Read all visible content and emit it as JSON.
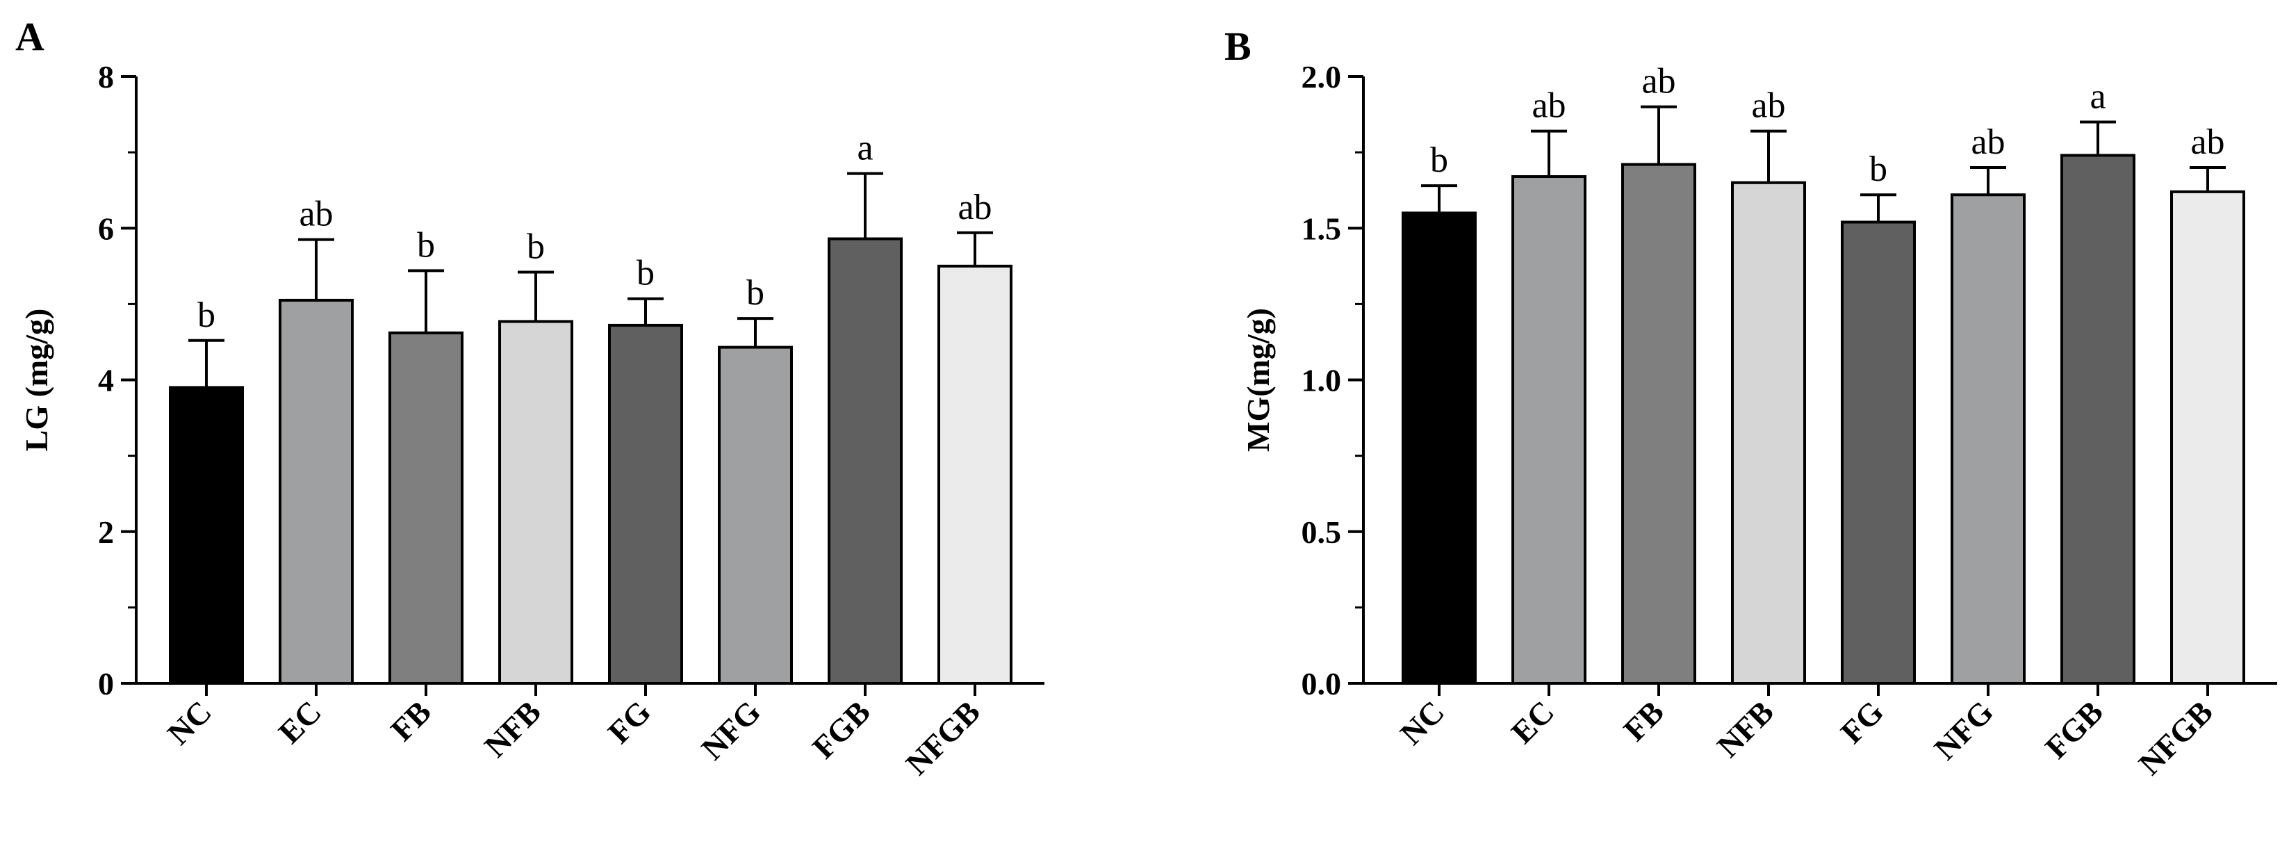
{
  "chart_data": [
    {
      "type": "bar",
      "panel_label": "A",
      "ylabel": "LG (mg/g)",
      "categories": [
        "NC",
        "EC",
        "FB",
        "NFB",
        "FG",
        "NFG",
        "FGB",
        "NFGB"
      ],
      "values": [
        3.9,
        5.05,
        4.62,
        4.77,
        4.72,
        4.43,
        5.86,
        5.5
      ],
      "errors": [
        0.62,
        0.8,
        0.82,
        0.65,
        0.35,
        0.38,
        0.86,
        0.44
      ],
      "significance": [
        "b",
        "ab",
        "b",
        "b",
        "b",
        "b",
        "a",
        "ab"
      ],
      "colors": [
        "#000000",
        "#9fa0a2",
        "#7f7f7f",
        "#d6d6d6",
        "#606060",
        "#9fa0a2",
        "#606060",
        "#ebebeb"
      ],
      "ylim": [
        0,
        8
      ],
      "yticks": [
        "0",
        "2",
        "4",
        "6",
        "8"
      ],
      "ytick_values": [
        0,
        2,
        4,
        6,
        8
      ],
      "minor_step": 1
    },
    {
      "type": "bar",
      "panel_label": "B",
      "ylabel": "MG(mg/g)",
      "categories": [
        "NC",
        "EC",
        "FB",
        "NFB",
        "FG",
        "NFG",
        "FGB",
        "NFGB"
      ],
      "values": [
        1.55,
        1.67,
        1.71,
        1.65,
        1.52,
        1.61,
        1.74,
        1.62
      ],
      "errors": [
        0.09,
        0.15,
        0.19,
        0.17,
        0.09,
        0.09,
        0.11,
        0.08
      ],
      "significance": [
        "b",
        "ab",
        "ab",
        "ab",
        "b",
        "ab",
        "a",
        "ab"
      ],
      "colors": [
        "#000000",
        "#9fa0a2",
        "#7f7f7f",
        "#d6d6d6",
        "#606060",
        "#9fa0a2",
        "#606060",
        "#ebebeb"
      ],
      "ylim": [
        0,
        2
      ],
      "yticks": [
        "0.0",
        "0.5",
        "1.0",
        "1.5",
        "2.0"
      ],
      "ytick_values": [
        0,
        0.5,
        1,
        1.5,
        2
      ],
      "minor_step": 0.25
    }
  ]
}
